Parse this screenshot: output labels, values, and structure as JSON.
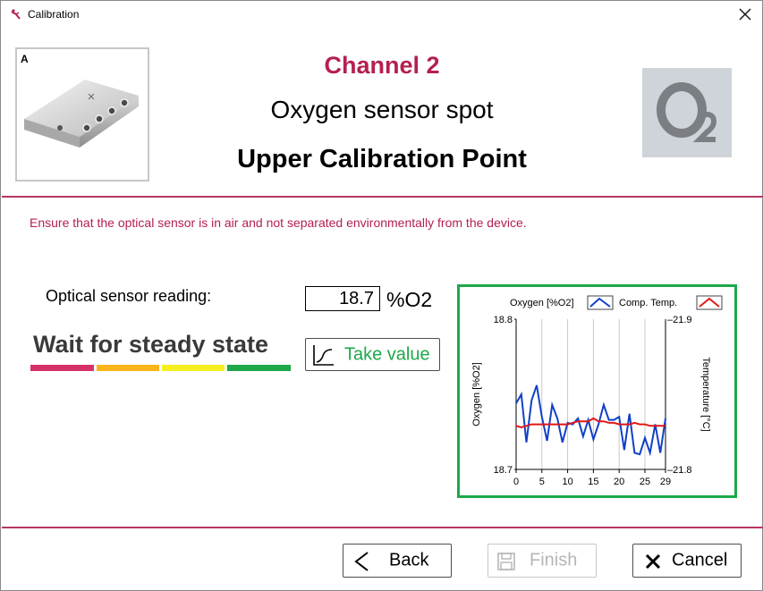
{
  "window": {
    "title": "Calibration"
  },
  "header": {
    "device_letter": "A",
    "channel": "Channel 2",
    "sensor_name": "Oxygen sensor spot",
    "calibration_point": "Upper Calibration Point"
  },
  "instruction": "Ensure that the optical sensor is in air and not separated environmentally from the device.",
  "reading": {
    "label": "Optical sensor reading:",
    "value": "18.7",
    "unit": "%O2"
  },
  "status": {
    "text": "Wait for steady state",
    "colors": [
      "#d6326a",
      "#fbb41b",
      "#f6ef1f",
      "#1ea84a"
    ]
  },
  "take_value": {
    "label": "Take value",
    "icon": "step-curve-icon"
  },
  "footer": {
    "back_label": "Back",
    "finish_label": "Finish",
    "cancel_label": "Cancel"
  },
  "chart_data": {
    "type": "line",
    "legend_placement": "top",
    "series": [
      {
        "name": "Oxygen [%O2]",
        "axis": "left",
        "color": "#1040c8",
        "x": [
          0,
          1,
          2,
          3,
          4,
          5,
          6,
          7,
          8,
          9,
          10,
          11,
          12,
          13,
          14,
          15,
          16,
          17,
          18,
          19,
          20,
          21,
          22,
          23,
          24,
          25,
          26,
          27,
          28,
          29
        ],
        "values": [
          18.744,
          18.75,
          18.718,
          18.746,
          18.756,
          18.735,
          18.719,
          18.743,
          18.734,
          18.718,
          18.731,
          18.73,
          18.734,
          18.722,
          18.733,
          18.72,
          18.73,
          18.743,
          18.733,
          18.733,
          18.735,
          18.713,
          18.737,
          18.711,
          18.71,
          18.721,
          18.711,
          18.73,
          18.711,
          18.734
        ]
      },
      {
        "name": "Comp. Temp.",
        "axis": "right",
        "color": "#e01818",
        "x": [
          0,
          1,
          2,
          3,
          4,
          5,
          6,
          7,
          8,
          9,
          10,
          11,
          12,
          13,
          14,
          15,
          16,
          17,
          18,
          19,
          20,
          21,
          22,
          23,
          24,
          25,
          26,
          27,
          28,
          29
        ],
        "values": [
          -21.829,
          -21.828,
          -21.829,
          -21.83,
          -21.83,
          -21.83,
          -21.83,
          -21.83,
          -21.83,
          -21.83,
          -21.83,
          -21.831,
          -21.832,
          -21.832,
          -21.832,
          -21.834,
          -21.832,
          -21.832,
          -21.831,
          -21.831,
          -21.83,
          -21.83,
          -21.83,
          -21.831,
          -21.83,
          -21.83,
          -21.829,
          -21.829,
          -21.829,
          -21.829
        ]
      }
    ],
    "ylabel": "Oxygen [%O2]",
    "y2label": "Temperature [°C]",
    "xlim": [
      0,
      29
    ],
    "ylim": [
      18.7,
      18.8
    ],
    "y2lim": [
      -21.8,
      -21.9
    ],
    "x_ticks": [
      "0",
      "5",
      "10",
      "15",
      "20",
      "25",
      "29"
    ],
    "x_tick_values": [
      0,
      5,
      10,
      15,
      20,
      25,
      29
    ],
    "y_ticks": [
      "18.8",
      "18.7"
    ],
    "y2_ticks": [
      "-21.9",
      "-21.8"
    ],
    "vertical_grid": true
  }
}
